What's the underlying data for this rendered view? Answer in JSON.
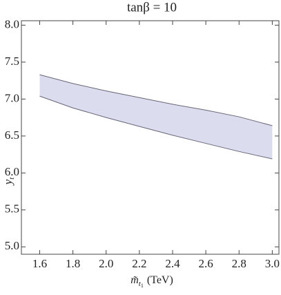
{
  "chart_data": {
    "type": "band",
    "title": "tanβ = 10",
    "xlabel": {
      "text": "m̃",
      "sub": "t",
      "subsub": "1",
      "unit": "(TeV)"
    },
    "ylabel": {
      "text": "y",
      "sub": "t"
    },
    "x": [
      1.6,
      1.8,
      2.0,
      2.2,
      2.4,
      2.6,
      2.8,
      3.0
    ],
    "series": [
      {
        "name": "upper",
        "values": [
          7.33,
          7.21,
          7.11,
          7.02,
          6.93,
          6.85,
          6.76,
          6.64
        ]
      },
      {
        "name": "lower",
        "values": [
          7.04,
          6.88,
          6.75,
          6.63,
          6.51,
          6.4,
          6.29,
          6.19
        ]
      }
    ],
    "color": "#dcdcef",
    "edge_color": "#666677",
    "xlim": [
      1.49,
      3.04
    ],
    "ylim": [
      4.9,
      8.06
    ],
    "xticks": [
      {
        "value": 1.6,
        "label": "1.6"
      },
      {
        "value": 1.8,
        "label": "1.8"
      },
      {
        "value": 2.0,
        "label": "2.0"
      },
      {
        "value": 2.2,
        "label": "2.2"
      },
      {
        "value": 2.4,
        "label": "2.4"
      },
      {
        "value": 2.6,
        "label": "2.6"
      },
      {
        "value": 2.8,
        "label": "2.8"
      },
      {
        "value": 3.0,
        "label": "3.0"
      }
    ],
    "yticks": [
      {
        "value": 5.0,
        "label": "5.0"
      },
      {
        "value": 5.5,
        "label": "5.5"
      },
      {
        "value": 6.0,
        "label": "6.0"
      },
      {
        "value": 6.5,
        "label": "6.5"
      },
      {
        "value": 7.0,
        "label": "7.0"
      },
      {
        "value": 7.5,
        "label": "7.5"
      },
      {
        "value": 8.0,
        "label": "8.0"
      }
    ]
  }
}
